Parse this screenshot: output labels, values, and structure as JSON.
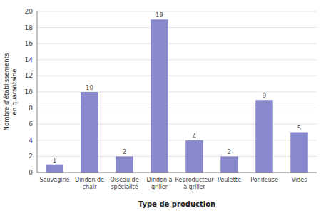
{
  "chart_data": {
    "type": "bar",
    "xlabel": "Type de production",
    "ylabel": "Nombre d'établissements\nen quarantaine",
    "categories": [
      "Sauvagine",
      "Dindon de\nchair",
      "Oiseau de\nspécialité",
      "Dindon à\ngriller",
      "Reproducteur\nà griller",
      "Poulette",
      "Pondeuse",
      "Vides"
    ],
    "values": [
      1,
      10,
      2,
      19,
      4,
      2,
      9,
      5
    ],
    "color": "#8888cc",
    "ylim": [
      0,
      20
    ],
    "yticks": [
      0,
      2,
      4,
      6,
      8,
      10,
      12,
      14,
      16,
      18,
      20
    ],
    "grid": true,
    "data_labels": true
  }
}
